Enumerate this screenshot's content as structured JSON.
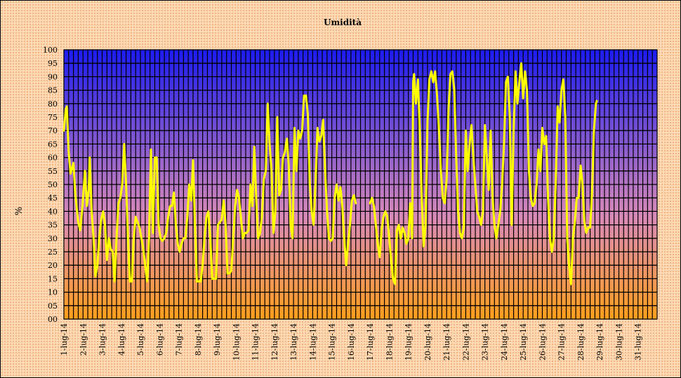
{
  "chart_data": {
    "type": "line",
    "title": "Umidità",
    "xlabel": "",
    "ylabel": "%",
    "ylim": [
      0,
      100
    ],
    "yticks": [
      "00",
      "05",
      "10",
      "15",
      "20",
      "25",
      "30",
      "35",
      "40",
      "45",
      "50",
      "55",
      "60",
      "65",
      "70",
      "75",
      "80",
      "85",
      "90",
      "95",
      "100"
    ],
    "categories": [
      "1-lug-14",
      "2-lug-14",
      "3-lug-14",
      "4-lug-14",
      "5-lug-14",
      "6-lug-14",
      "7-lug-14",
      "8-lug-14",
      "9-lug-14",
      "10-lug-14",
      "11-lug-14",
      "12-lug-14",
      "13-lug-14",
      "14-lug-14",
      "15-lug-14",
      "16-lug-14",
      "17-lug-14",
      "18-lug-14",
      "19-lug-14",
      "20-lug-14",
      "21-lug-14",
      "22-lug-14",
      "23-lug-14",
      "24-lug-14",
      "25-lug-14",
      "26-lug-14",
      "27-lug-14",
      "28-lug-14",
      "29-lug-14",
      "30-lug-14",
      "31-lug-14"
    ],
    "grid": true,
    "legend": "none",
    "colors": {
      "line": "#ffff00",
      "plot_top": "#1b1bf0",
      "plot_mid": "#d88ab8",
      "plot_bottom": "#ff9f1c",
      "grid": "#000000"
    },
    "series": [
      {
        "values": [
          [
            0.0,
            70
          ],
          [
            0.1,
            78
          ],
          [
            0.15,
            79
          ],
          [
            0.25,
            62
          ],
          [
            0.35,
            54
          ],
          [
            0.5,
            58
          ],
          [
            0.6,
            46
          ],
          [
            0.75,
            36
          ],
          [
            0.85,
            33
          ],
          [
            0.95,
            40
          ],
          [
            1.0,
            45
          ],
          [
            1.1,
            55
          ],
          [
            1.2,
            42
          ],
          [
            1.3,
            48
          ],
          [
            1.35,
            60
          ],
          [
            1.45,
            40
          ],
          [
            1.55,
            30
          ],
          [
            1.65,
            16
          ],
          [
            1.75,
            20
          ],
          [
            1.85,
            30
          ],
          [
            1.95,
            37
          ],
          [
            2.05,
            40
          ],
          [
            2.15,
            35
          ],
          [
            2.25,
            22
          ],
          [
            2.35,
            30
          ],
          [
            2.45,
            26
          ],
          [
            2.55,
            25
          ],
          [
            2.65,
            14
          ],
          [
            2.75,
            30
          ],
          [
            2.85,
            43
          ],
          [
            2.95,
            45
          ],
          [
            3.05,
            50
          ],
          [
            3.15,
            65
          ],
          [
            3.25,
            50
          ],
          [
            3.35,
            30
          ],
          [
            3.45,
            14
          ],
          [
            3.55,
            14
          ],
          [
            3.65,
            30
          ],
          [
            3.75,
            38
          ],
          [
            3.85,
            36
          ],
          [
            3.95,
            34
          ],
          [
            4.05,
            30
          ],
          [
            4.15,
            26
          ],
          [
            4.25,
            20
          ],
          [
            4.35,
            14
          ],
          [
            4.45,
            30
          ],
          [
            4.55,
            63
          ],
          [
            4.65,
            32
          ],
          [
            4.75,
            60
          ],
          [
            4.85,
            60
          ],
          [
            4.95,
            35
          ],
          [
            5.05,
            30
          ],
          [
            5.15,
            29
          ],
          [
            5.25,
            30
          ],
          [
            5.35,
            32
          ],
          [
            5.45,
            38
          ],
          [
            5.55,
            42
          ],
          [
            5.65,
            42
          ],
          [
            5.75,
            47
          ],
          [
            5.85,
            35
          ],
          [
            5.95,
            28
          ],
          [
            6.05,
            25
          ],
          [
            6.15,
            28
          ],
          [
            6.25,
            30
          ],
          [
            6.35,
            30
          ],
          [
            6.45,
            38
          ],
          [
            6.55,
            50
          ],
          [
            6.65,
            44
          ],
          [
            6.75,
            59
          ],
          [
            6.85,
            35
          ],
          [
            6.95,
            14
          ],
          [
            7.05,
            14
          ],
          [
            7.15,
            14
          ],
          [
            7.25,
            20
          ],
          [
            7.35,
            30
          ],
          [
            7.45,
            38
          ],
          [
            7.55,
            40
          ],
          [
            7.65,
            30
          ],
          [
            7.75,
            15
          ],
          [
            7.85,
            15
          ],
          [
            7.95,
            15
          ],
          [
            8.05,
            35
          ],
          [
            8.15,
            36
          ],
          [
            8.25,
            37
          ],
          [
            8.35,
            44
          ],
          [
            8.45,
            35
          ],
          [
            8.55,
            17
          ],
          [
            8.65,
            17
          ],
          [
            8.75,
            18
          ],
          [
            8.85,
            30
          ],
          [
            8.95,
            42
          ],
          [
            9.05,
            48
          ],
          [
            9.15,
            45
          ],
          [
            9.25,
            38
          ],
          [
            9.35,
            30
          ],
          [
            9.45,
            32
          ],
          [
            9.55,
            32
          ],
          [
            9.65,
            33
          ],
          [
            9.75,
            50
          ],
          [
            9.85,
            42
          ],
          [
            9.95,
            64
          ],
          [
            10.05,
            45
          ],
          [
            10.15,
            30
          ],
          [
            10.25,
            32
          ],
          [
            10.35,
            38
          ],
          [
            10.45,
            52
          ],
          [
            10.55,
            55
          ],
          [
            10.65,
            80
          ],
          [
            10.75,
            65
          ],
          [
            10.85,
            55
          ],
          [
            10.95,
            32
          ],
          [
            11.05,
            40
          ],
          [
            11.15,
            75
          ],
          [
            11.25,
            46
          ],
          [
            11.35,
            48
          ],
          [
            11.45,
            60
          ],
          [
            11.55,
            62
          ],
          [
            11.65,
            67
          ],
          [
            11.75,
            57
          ],
          [
            11.85,
            35
          ],
          [
            11.95,
            30
          ],
          [
            12.05,
            71
          ],
          [
            12.15,
            55
          ],
          [
            12.25,
            70
          ],
          [
            12.35,
            67
          ],
          [
            12.45,
            70
          ],
          [
            12.55,
            83
          ],
          [
            12.65,
            83
          ],
          [
            12.75,
            76
          ],
          [
            12.85,
            50
          ],
          [
            12.95,
            40
          ],
          [
            13.05,
            35
          ],
          [
            13.15,
            50
          ],
          [
            13.25,
            71
          ],
          [
            13.35,
            66
          ],
          [
            13.45,
            68
          ],
          [
            13.55,
            74
          ],
          [
            13.65,
            55
          ],
          [
            13.75,
            40
          ],
          [
            13.85,
            30
          ],
          [
            13.95,
            29
          ],
          [
            14.05,
            30
          ],
          [
            14.15,
            45
          ],
          [
            14.25,
            50
          ],
          [
            14.35,
            44
          ],
          [
            14.45,
            49
          ],
          [
            14.55,
            42
          ],
          [
            14.65,
            30
          ],
          [
            14.75,
            20
          ],
          [
            14.85,
            28
          ],
          [
            14.95,
            35
          ],
          [
            15.05,
            44
          ],
          [
            15.15,
            46
          ],
          [
            15.25,
            43
          ],
          [
            16.0,
            43
          ],
          [
            16.1,
            45
          ],
          [
            16.2,
            42
          ],
          [
            16.3,
            35
          ],
          [
            16.4,
            28
          ],
          [
            16.5,
            23
          ],
          [
            16.6,
            33
          ],
          [
            16.7,
            38
          ],
          [
            16.8,
            40
          ],
          [
            16.9,
            38
          ],
          [
            17.0,
            30
          ],
          [
            17.1,
            22
          ],
          [
            17.2,
            15
          ],
          [
            17.3,
            13
          ],
          [
            17.4,
            33
          ],
          [
            17.5,
            35
          ],
          [
            17.6,
            30
          ],
          [
            17.7,
            34
          ],
          [
            17.8,
            32
          ],
          [
            17.9,
            28
          ],
          [
            18.0,
            30
          ],
          [
            18.1,
            43
          ],
          [
            18.2,
            30
          ],
          [
            18.25,
            88
          ],
          [
            18.3,
            91
          ],
          [
            18.4,
            80
          ],
          [
            18.5,
            89
          ],
          [
            18.6,
            70
          ],
          [
            18.7,
            45
          ],
          [
            18.8,
            27
          ],
          [
            18.9,
            35
          ],
          [
            19.0,
            73
          ],
          [
            19.1,
            89
          ],
          [
            19.2,
            92
          ],
          [
            19.3,
            88
          ],
          [
            19.4,
            92
          ],
          [
            19.5,
            83
          ],
          [
            19.6,
            70
          ],
          [
            19.7,
            55
          ],
          [
            19.8,
            45
          ],
          [
            19.9,
            43
          ],
          [
            20.0,
            52
          ],
          [
            20.1,
            78
          ],
          [
            20.2,
            91
          ],
          [
            20.3,
            92
          ],
          [
            20.4,
            85
          ],
          [
            20.5,
            60
          ],
          [
            20.6,
            40
          ],
          [
            20.7,
            32
          ],
          [
            20.8,
            30
          ],
          [
            20.9,
            34
          ],
          [
            21.0,
            70
          ],
          [
            21.1,
            55
          ],
          [
            21.2,
            65
          ],
          [
            21.3,
            72
          ],
          [
            21.4,
            60
          ],
          [
            21.5,
            50
          ],
          [
            21.6,
            40
          ],
          [
            21.7,
            38
          ],
          [
            21.8,
            35
          ],
          [
            21.9,
            40
          ],
          [
            22.0,
            72
          ],
          [
            22.1,
            60
          ],
          [
            22.2,
            48
          ],
          [
            22.3,
            70
          ],
          [
            22.4,
            45
          ],
          [
            22.5,
            35
          ],
          [
            22.6,
            30
          ],
          [
            22.7,
            35
          ],
          [
            22.8,
            40
          ],
          [
            22.9,
            50
          ],
          [
            23.0,
            65
          ],
          [
            23.1,
            88
          ],
          [
            23.2,
            90
          ],
          [
            23.3,
            75
          ],
          [
            23.4,
            35
          ],
          [
            23.5,
            70
          ],
          [
            23.6,
            92
          ],
          [
            23.7,
            80
          ],
          [
            23.8,
            88
          ],
          [
            23.9,
            95
          ],
          [
            24.0,
            82
          ],
          [
            24.1,
            92
          ],
          [
            24.2,
            85
          ],
          [
            24.3,
            55
          ],
          [
            24.4,
            45
          ],
          [
            24.5,
            42
          ],
          [
            24.6,
            43
          ],
          [
            24.7,
            50
          ],
          [
            24.8,
            63
          ],
          [
            24.9,
            55
          ],
          [
            25.0,
            71
          ],
          [
            25.1,
            65
          ],
          [
            25.2,
            68
          ],
          [
            25.3,
            45
          ],
          [
            25.4,
            30
          ],
          [
            25.5,
            25
          ],
          [
            25.6,
            30
          ],
          [
            25.7,
            50
          ],
          [
            25.8,
            79
          ],
          [
            25.9,
            73
          ],
          [
            26.0,
            85
          ],
          [
            26.1,
            89
          ],
          [
            26.2,
            75
          ],
          [
            26.3,
            30
          ],
          [
            26.4,
            20
          ],
          [
            26.5,
            13
          ],
          [
            26.6,
            30
          ],
          [
            26.7,
            36
          ],
          [
            26.8,
            45
          ],
          [
            26.9,
            45
          ],
          [
            27.0,
            57
          ],
          [
            27.1,
            50
          ],
          [
            27.2,
            36
          ],
          [
            27.3,
            32
          ],
          [
            27.4,
            34
          ],
          [
            27.5,
            34
          ],
          [
            27.6,
            47
          ],
          [
            27.7,
            70
          ],
          [
            27.8,
            80
          ],
          [
            27.85,
            81
          ]
        ]
      }
    ]
  }
}
